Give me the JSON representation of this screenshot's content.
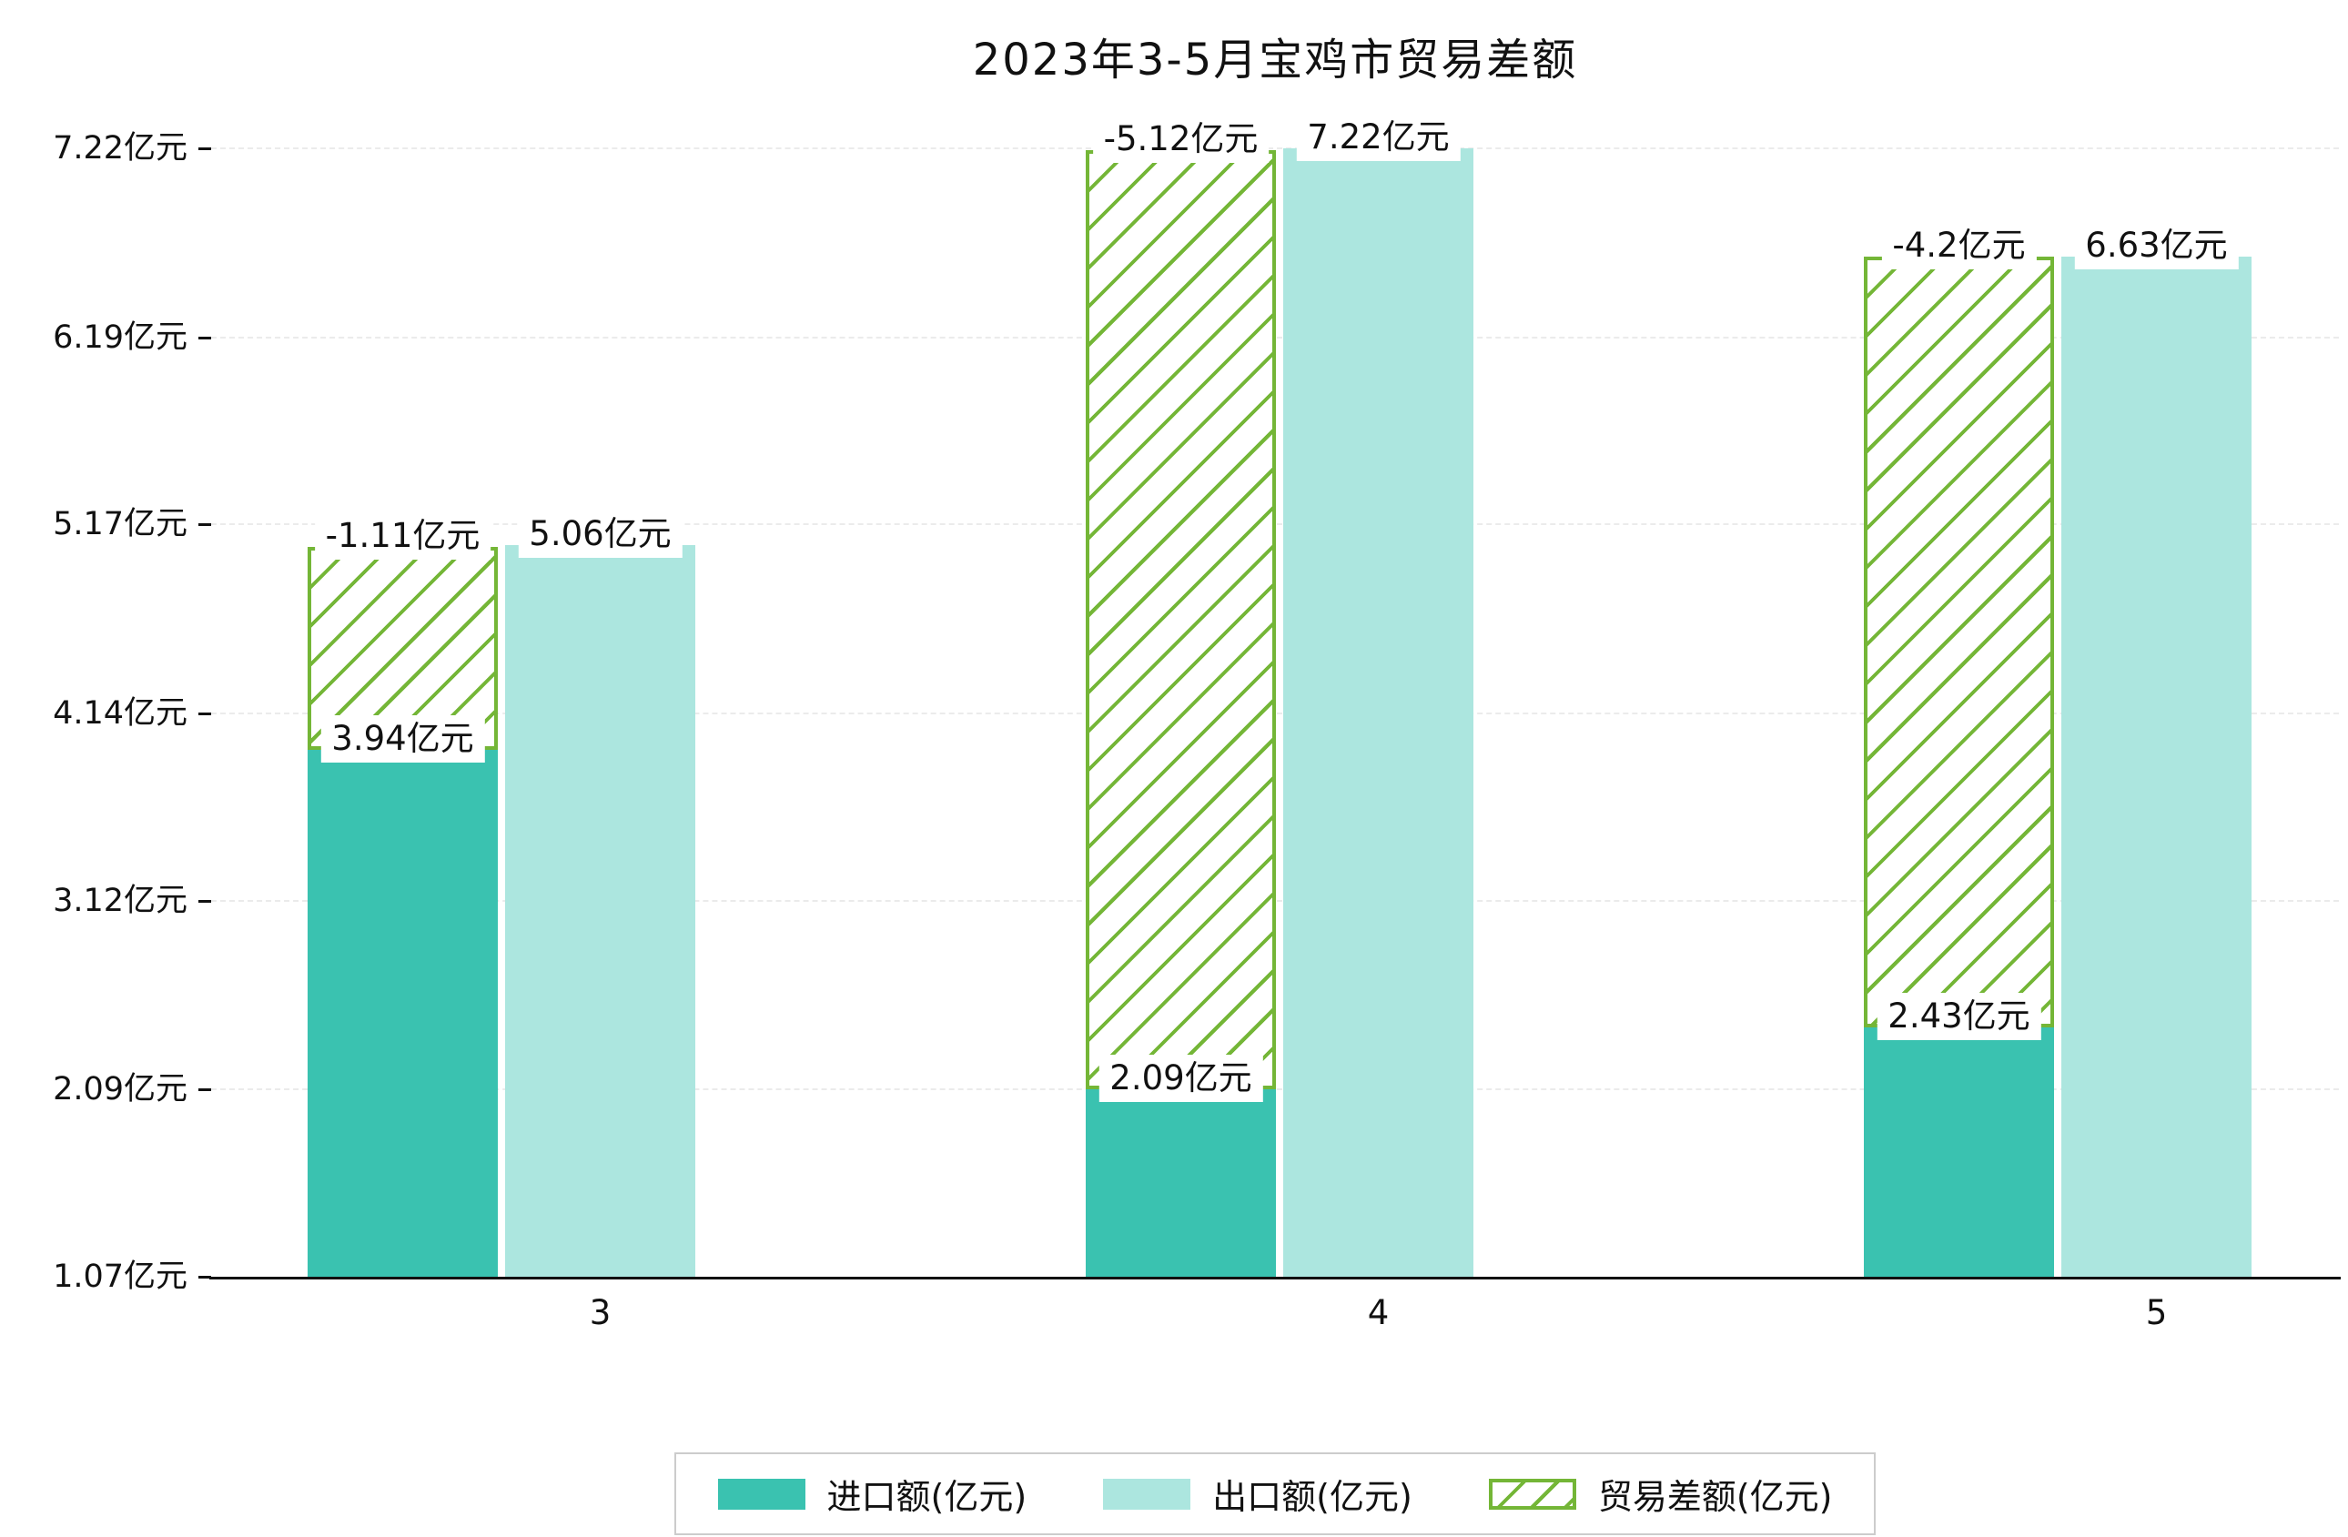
{
  "title": "2023年3-5月宝鸡市贸易差额",
  "colors": {
    "import": "#3AC2B0",
    "export": "#ACE6DF",
    "balance": "#74B637",
    "axis": "#111111",
    "grid": "#EBEBEB",
    "text": "#111111",
    "legend_border": "#CCCCCC"
  },
  "chart_data": {
    "type": "bar",
    "title": "2023年3-5月宝鸡市贸易差额",
    "categories": [
      "3",
      "4",
      "5"
    ],
    "series": [
      {
        "name": "进口额(亿元)",
        "style": "solid",
        "values": [
          3.94,
          2.09,
          2.43
        ],
        "labels": [
          "3.94亿元",
          "2.09亿元",
          "2.43亿元"
        ]
      },
      {
        "name": "出口额(亿元)",
        "style": "solid",
        "values": [
          5.06,
          7.22,
          6.63
        ],
        "labels": [
          "5.06亿元",
          "7.22亿元",
          "6.63亿元"
        ]
      },
      {
        "name": "贸易差额(亿元)",
        "style": "hatched-outline",
        "stacked_on": "进口额(亿元)",
        "values": [
          -1.11,
          -5.12,
          -4.2
        ],
        "labels": [
          "-1.11亿元",
          "-5.12亿元",
          "-4.2亿元"
        ]
      }
    ],
    "y_ticks": [
      {
        "value": 1.07,
        "label": "1.07亿元"
      },
      {
        "value": 2.09,
        "label": "2.09亿元"
      },
      {
        "value": 3.12,
        "label": "3.12亿元"
      },
      {
        "value": 4.14,
        "label": "4.14亿元"
      },
      {
        "value": 5.17,
        "label": "5.17亿元"
      },
      {
        "value": 6.19,
        "label": "6.19亿元"
      },
      {
        "value": 7.22,
        "label": "7.22亿元"
      }
    ],
    "ylim": [
      1.07,
      7.22
    ],
    "xlabel": "",
    "ylabel": "",
    "grid": "horizontal-dashed",
    "legend_position": "bottom"
  }
}
